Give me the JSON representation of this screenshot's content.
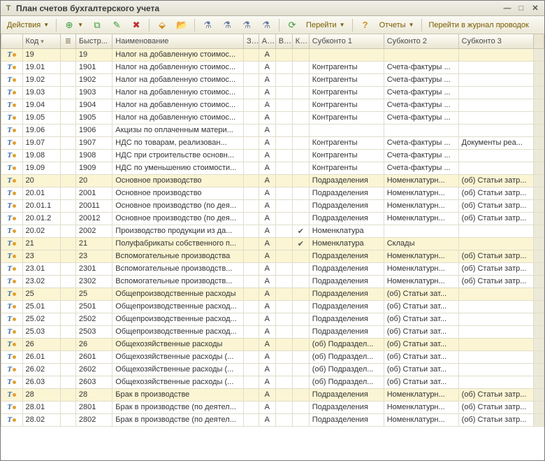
{
  "window": {
    "title": "План счетов бухгалтерского учета"
  },
  "toolbar": {
    "actions": "Действия",
    "go": "Перейти",
    "reports": "Отчеты",
    "journal": "Перейти в журнал проводок"
  },
  "columns": {
    "code": "Код",
    "quick": "Быстр...",
    "name": "Наименование",
    "z": "З...",
    "a": "A...",
    "v": "В...",
    "k": "К...",
    "sub1": "Субконто 1",
    "sub2": "Субконто 2",
    "sub3": "Субконто 3"
  },
  "rows": [
    {
      "hl": true,
      "code": "19",
      "quick": "19",
      "name": "Налог на добавленную стоимос...",
      "a": "А",
      "v": "",
      "k": "",
      "s1": "",
      "s2": "",
      "s3": ""
    },
    {
      "hl": false,
      "code": "19.01",
      "quick": "1901",
      "name": "Налог на добавленную стоимос...",
      "a": "А",
      "v": "",
      "k": "",
      "s1": "Контрагенты",
      "s2": "Счета-фактуры ...",
      "s3": ""
    },
    {
      "hl": false,
      "code": "19.02",
      "quick": "1902",
      "name": "Налог на добавленную стоимос...",
      "a": "А",
      "v": "",
      "k": "",
      "s1": "Контрагенты",
      "s2": "Счета-фактуры ...",
      "s3": ""
    },
    {
      "hl": false,
      "code": "19.03",
      "quick": "1903",
      "name": "Налог на добавленную стоимос...",
      "a": "А",
      "v": "",
      "k": "",
      "s1": "Контрагенты",
      "s2": "Счета-фактуры ...",
      "s3": ""
    },
    {
      "hl": false,
      "code": "19.04",
      "quick": "1904",
      "name": "Налог на добавленную стоимос...",
      "a": "А",
      "v": "",
      "k": "",
      "s1": "Контрагенты",
      "s2": "Счета-фактуры ...",
      "s3": ""
    },
    {
      "hl": false,
      "code": "19.05",
      "quick": "1905",
      "name": "Налог на добавленную стоимос...",
      "a": "А",
      "v": "",
      "k": "",
      "s1": "Контрагенты",
      "s2": "Счета-фактуры ...",
      "s3": ""
    },
    {
      "hl": false,
      "code": "19.06",
      "quick": "1906",
      "name": "Акцизы по оплаченным матери...",
      "a": "А",
      "v": "",
      "k": "",
      "s1": "",
      "s2": "",
      "s3": ""
    },
    {
      "hl": false,
      "code": "19.07",
      "quick": "1907",
      "name": "НДС по товарам, реализован...",
      "a": "А",
      "v": "",
      "k": "",
      "s1": "Контрагенты",
      "s2": "Счета-фактуры ...",
      "s3": "Документы реа..."
    },
    {
      "hl": false,
      "code": "19.08",
      "quick": "1908",
      "name": "НДС при строительстве основн...",
      "a": "А",
      "v": "",
      "k": "",
      "s1": "Контрагенты",
      "s2": "Счета-фактуры ...",
      "s3": ""
    },
    {
      "hl": false,
      "code": "19.09",
      "quick": "1909",
      "name": "НДС по уменьшению стоимости...",
      "a": "А",
      "v": "",
      "k": "",
      "s1": "Контрагенты",
      "s2": "Счета-фактуры ...",
      "s3": ""
    },
    {
      "hl": true,
      "code": "20",
      "quick": "20",
      "name": "Основное производство",
      "a": "А",
      "v": "",
      "k": "",
      "s1": "Подразделения",
      "s2": "Номенклатурн...",
      "s3": "(об) Статьи затр..."
    },
    {
      "hl": false,
      "code": "20.01",
      "quick": "2001",
      "name": "Основное производство",
      "a": "А",
      "v": "",
      "k": "",
      "s1": "Подразделения",
      "s2": "Номенклатурн...",
      "s3": "(об) Статьи затр..."
    },
    {
      "hl": false,
      "code": "20.01.1",
      "quick": "20011",
      "name": "Основное производство (по дея...",
      "a": "А",
      "v": "",
      "k": "",
      "s1": "Подразделения",
      "s2": "Номенклатурн...",
      "s3": "(об) Статьи затр..."
    },
    {
      "hl": false,
      "code": "20.01.2",
      "quick": "20012",
      "name": "Основное производство (по дея...",
      "a": "А",
      "v": "",
      "k": "",
      "s1": "Подразделения",
      "s2": "Номенклатурн...",
      "s3": "(об) Статьи затр..."
    },
    {
      "hl": false,
      "code": "20.02",
      "quick": "2002",
      "name": "Производство продукции из да...",
      "a": "А",
      "v": "",
      "k": "✔",
      "s1": "Номенклатура",
      "s2": "",
      "s3": ""
    },
    {
      "hl": true,
      "code": "21",
      "quick": "21",
      "name": "Полуфабрикаты собственного п...",
      "a": "А",
      "v": "",
      "k": "✔",
      "s1": "Номенклатура",
      "s2": "Склады",
      "s3": ""
    },
    {
      "hl": true,
      "code": "23",
      "quick": "23",
      "name": "Вспомогательные производства",
      "a": "А",
      "v": "",
      "k": "",
      "s1": "Подразделения",
      "s2": "Номенклатурн...",
      "s3": "(об) Статьи затр..."
    },
    {
      "hl": false,
      "code": "23.01",
      "quick": "2301",
      "name": "Вспомогательные производств...",
      "a": "А",
      "v": "",
      "k": "",
      "s1": "Подразделения",
      "s2": "Номенклатурн...",
      "s3": "(об) Статьи затр..."
    },
    {
      "hl": false,
      "code": "23.02",
      "quick": "2302",
      "name": "Вспомогательные производств...",
      "a": "А",
      "v": "",
      "k": "",
      "s1": "Подразделения",
      "s2": "Номенклатурн...",
      "s3": "(об) Статьи затр..."
    },
    {
      "hl": true,
      "code": "25",
      "quick": "25",
      "name": "Общепроизводственные расходы",
      "a": "А",
      "v": "",
      "k": "",
      "s1": "Подразделения",
      "s2": "(об) Статьи зат...",
      "s3": ""
    },
    {
      "hl": false,
      "code": "25.01",
      "quick": "2501",
      "name": "Общепроизводственные расход...",
      "a": "А",
      "v": "",
      "k": "",
      "s1": "Подразделения",
      "s2": "(об) Статьи зат...",
      "s3": ""
    },
    {
      "hl": false,
      "code": "25.02",
      "quick": "2502",
      "name": "Общепроизводственные расход...",
      "a": "А",
      "v": "",
      "k": "",
      "s1": "Подразделения",
      "s2": "(об) Статьи зат...",
      "s3": ""
    },
    {
      "hl": false,
      "code": "25.03",
      "quick": "2503",
      "name": "Общепроизводственные расход...",
      "a": "А",
      "v": "",
      "k": "",
      "s1": "Подразделения",
      "s2": "(об) Статьи зат...",
      "s3": ""
    },
    {
      "hl": true,
      "code": "26",
      "quick": "26",
      "name": "Общехозяйственные расходы",
      "a": "А",
      "v": "",
      "k": "",
      "s1": "(об) Подраздел...",
      "s2": "(об) Статьи зат...",
      "s3": ""
    },
    {
      "hl": false,
      "code": "26.01",
      "quick": "2601",
      "name": "Общехозяйственные расходы (...",
      "a": "А",
      "v": "",
      "k": "",
      "s1": "(об) Подраздел...",
      "s2": "(об) Статьи зат...",
      "s3": ""
    },
    {
      "hl": false,
      "code": "26.02",
      "quick": "2602",
      "name": "Общехозяйственные расходы (...",
      "a": "А",
      "v": "",
      "k": "",
      "s1": "(об) Подраздел...",
      "s2": "(об) Статьи зат...",
      "s3": ""
    },
    {
      "hl": false,
      "code": "26.03",
      "quick": "2603",
      "name": "Общехозяйственные расходы (...",
      "a": "А",
      "v": "",
      "k": "",
      "s1": "(об) Подраздел...",
      "s2": "(об) Статьи зат...",
      "s3": ""
    },
    {
      "hl": true,
      "code": "28",
      "quick": "28",
      "name": "Брак в производстве",
      "a": "А",
      "v": "",
      "k": "",
      "s1": "Подразделения",
      "s2": "Номенклатурн...",
      "s3": "(об) Статьи затр..."
    },
    {
      "hl": false,
      "code": "28.01",
      "quick": "2801",
      "name": "Брак в производстве (по деятел...",
      "a": "А",
      "v": "",
      "k": "",
      "s1": "Подразделения",
      "s2": "Номенклатурн...",
      "s3": "(об) Статьи затр..."
    },
    {
      "hl": false,
      "code": "28.02",
      "quick": "2802",
      "name": "Брак в производстве (по деятел...",
      "a": "А",
      "v": "",
      "k": "",
      "s1": "Подразделения",
      "s2": "Номенклатурн...",
      "s3": "(об) Статьи затр..."
    }
  ],
  "colors": {
    "highlight": "#fbf5d4",
    "header_grad_top": "#fdfcf7",
    "header_grad_bot": "#eae6d2",
    "border": "#c9c6b4"
  }
}
